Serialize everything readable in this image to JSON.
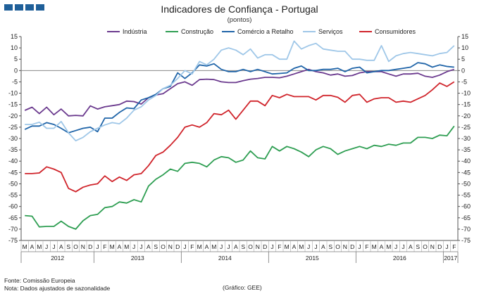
{
  "header": {
    "title": "Indicadores de Confiança - Portugal",
    "subtitle": "(pontos)"
  },
  "footer": {
    "source": "Fonte: Comissão Europeia",
    "note": "Nota: Dados ajustados de sazonalidade",
    "credit": "(Gráfico: GEE)"
  },
  "logo": {
    "color": "#1f5f99"
  },
  "chart_data": {
    "type": "line",
    "title": "Indicadores de Confiança - Portugal",
    "subtitle": "(pontos)",
    "ylim": [
      -75,
      15
    ],
    "yticks": [
      15,
      10,
      5,
      0,
      -5,
      -10,
      -15,
      -20,
      -25,
      -30,
      -35,
      -40,
      -45,
      -50,
      -55,
      -60,
      -65,
      -70,
      -75
    ],
    "grid": false,
    "legend_position": "top",
    "axes": "dual-y (same scale left and right)",
    "month_labels": [
      "M",
      "A",
      "M",
      "J",
      "J",
      "A",
      "S",
      "O",
      "N",
      "D",
      "J",
      "F",
      "M",
      "A",
      "M",
      "J",
      "J",
      "A",
      "S",
      "O",
      "N",
      "D",
      "J",
      "F",
      "M",
      "A",
      "M",
      "J",
      "J",
      "A",
      "S",
      "O",
      "N",
      "D",
      "J",
      "F",
      "M",
      "A",
      "M",
      "J",
      "J",
      "A",
      "S",
      "O",
      "N",
      "D",
      "J",
      "F",
      "M",
      "A",
      "M",
      "J",
      "J",
      "A",
      "S",
      "O",
      "N",
      "D",
      "J",
      "F"
    ],
    "year_labels": [
      {
        "label": "2012",
        "start": 0,
        "end": 9
      },
      {
        "label": "2013",
        "start": 10,
        "end": 21
      },
      {
        "label": "2014",
        "start": 22,
        "end": 33
      },
      {
        "label": "2015",
        "start": 34,
        "end": 45
      },
      {
        "label": "2016",
        "start": 46,
        "end": 57
      },
      {
        "label": "2017",
        "start": 58,
        "end": 59
      }
    ],
    "series": [
      {
        "name": "Indústria",
        "color": "#6b3a8e",
        "values": [
          -17.6,
          -16.2,
          -19,
          -16.2,
          -19.5,
          -17,
          -20,
          -19.8,
          -20,
          -15.6,
          -17,
          -16,
          -15.5,
          -15,
          -13.5,
          -13.7,
          -14.8,
          -12,
          -10.8,
          -10.2,
          -8,
          -5.8,
          -5,
          -6.5,
          -4,
          -3.8,
          -4,
          -5,
          -5.3,
          -5.3,
          -4.5,
          -3.8,
          -3.5,
          -3,
          -3,
          -3.2,
          -2.5,
          -1.5,
          -0.5,
          0.5,
          -0.5,
          -1,
          -2,
          -1.5,
          -2.5,
          -2.2,
          -1,
          -0.5,
          -0.5,
          -0.5,
          -1.5,
          -2.5,
          -1.5,
          -1.5,
          -1.2,
          -2.5,
          -3,
          -2,
          -0.5,
          0.5
        ]
      },
      {
        "name": "Construção",
        "color": "#2e9e52",
        "values": [
          -64,
          -64.3,
          -69,
          -68.8,
          -68.8,
          -66.5,
          -68.8,
          -70,
          -66.3,
          -64,
          -63.5,
          -60.5,
          -60,
          -58,
          -58.5,
          -57,
          -58,
          -51,
          -48,
          -46,
          -43.5,
          -44.5,
          -41,
          -40.5,
          -41,
          -42.5,
          -39.5,
          -38,
          -38.5,
          -40.5,
          -39.5,
          -35.5,
          -38.5,
          -39,
          -33.5,
          -35.5,
          -33.5,
          -34.5,
          -36,
          -38,
          -35,
          -33.5,
          -34.5,
          -37,
          -35.5,
          -34.5,
          -33.5,
          -34.5,
          -33,
          -33.5,
          -32.5,
          -33,
          -32,
          -32,
          -29.5,
          -29.5,
          -30,
          -28.5,
          -28.8,
          -24.5
        ]
      },
      {
        "name": "Comércio a Retalho",
        "color": "#1f64a8",
        "values": [
          -26,
          -24.5,
          -24.5,
          -23,
          -23.8,
          -25.5,
          -27.5,
          -26.5,
          -25.5,
          -25,
          -27,
          -21,
          -21,
          -18.5,
          -16.5,
          -16.8,
          -13,
          -12,
          -10.5,
          -8,
          -7,
          -1,
          -3.5,
          -1,
          2.5,
          2,
          3,
          0.5,
          -0.5,
          -0.5,
          0.5,
          -0.5,
          0.5,
          -0.5,
          -1.5,
          -1.3,
          -1,
          1,
          2,
          0,
          0,
          0.5,
          0.5,
          1,
          -0.5,
          1,
          1.5,
          -1,
          -0.5,
          0,
          0,
          0.5,
          1,
          1.5,
          3.5,
          3,
          1.5,
          2.5,
          1.8,
          1.5
        ]
      },
      {
        "name": "Serviços",
        "color": "#9fc7e8",
        "values": [
          -23.8,
          -23.8,
          -22.8,
          -25.5,
          -25.5,
          -22.5,
          -27.5,
          -31,
          -29.5,
          -27,
          -25.5,
          -24,
          -23,
          -23.5,
          -21,
          -17.5,
          -16,
          -13,
          -11,
          -8,
          -6.5,
          -3.5,
          0,
          -1.5,
          4,
          2.5,
          5,
          9,
          10,
          9,
          7,
          9.5,
          5.5,
          7,
          7,
          5,
          5,
          13,
          9.5,
          11,
          12,
          9.5,
          9,
          8.5,
          8.5,
          5,
          5,
          4.5,
          4.5,
          11,
          4,
          6.5,
          7.5,
          8,
          7.5,
          7,
          6.5,
          7.5,
          8,
          11
        ]
      },
      {
        "name": "Consumidores",
        "color": "#d0242b",
        "values": [
          -45.5,
          -45.5,
          -45.2,
          -42.5,
          -43.5,
          -45,
          -52,
          -53.5,
          -51.5,
          -50.5,
          -50,
          -46.5,
          -49,
          -47,
          -48.5,
          -46,
          -45.5,
          -42,
          -37.5,
          -36,
          -33,
          -29.5,
          -25,
          -24,
          -25,
          -23,
          -19,
          -19.5,
          -17.5,
          -21.5,
          -17.5,
          -13.5,
          -13.5,
          -15.5,
          -11,
          -12,
          -10.5,
          -11.5,
          -11.5,
          -11.5,
          -13,
          -11,
          -11,
          -11.8,
          -14,
          -11,
          -10.5,
          -14,
          -12.5,
          -12,
          -12,
          -14,
          -13.5,
          -14,
          -12.5,
          -11,
          -8.5,
          -5.5,
          -7,
          -5
        ]
      }
    ]
  }
}
